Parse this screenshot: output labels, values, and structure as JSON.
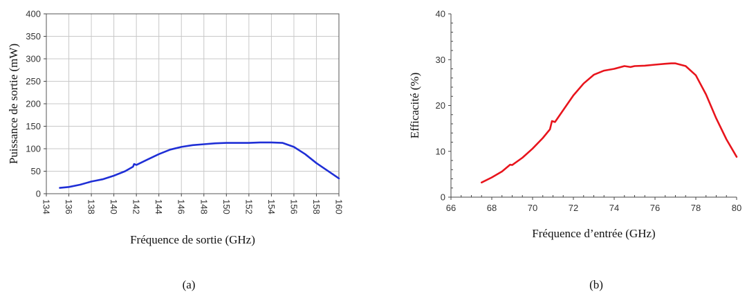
{
  "chart_data": [
    {
      "type": "line",
      "caption": "(a)",
      "xlabel": "Fréquence de sortie (GHz)",
      "ylabel": "Puissance de sortie (mW)",
      "xlim": [
        134,
        160
      ],
      "ylim": [
        0,
        400
      ],
      "xticks": [
        134,
        136,
        138,
        140,
        142,
        144,
        146,
        148,
        150,
        152,
        154,
        156,
        158,
        160
      ],
      "yticks": [
        0,
        50,
        100,
        150,
        200,
        250,
        300,
        350,
        400
      ],
      "grid": true,
      "xtick_rotation": "vertical",
      "color": "#1f2fd6",
      "series": [
        {
          "x": [
            135.2,
            136,
            137,
            138,
            138.4,
            139,
            140,
            141,
            141.7,
            141.8,
            142,
            143,
            144,
            145,
            146,
            147,
            148,
            149,
            150,
            151,
            152,
            153,
            154,
            155,
            156,
            157,
            158,
            159,
            160
          ],
          "y": [
            13,
            15,
            20,
            27,
            29,
            32,
            40,
            50,
            60,
            66,
            64,
            76,
            88,
            98,
            104,
            108,
            110,
            112,
            113,
            113,
            113,
            114,
            114,
            113,
            104,
            88,
            68,
            51,
            34
          ]
        }
      ]
    },
    {
      "type": "line",
      "caption": "(b)",
      "xlabel": "Fréquence d’entrée (GHz)",
      "ylabel": "Efficacité (%)",
      "xlim": [
        66,
        80
      ],
      "ylim": [
        0,
        40
      ],
      "xticks": [
        66,
        68,
        70,
        72,
        74,
        76,
        78,
        80
      ],
      "yticks": [
        0,
        10,
        20,
        30,
        40
      ],
      "grid": false,
      "color": "#e8141c",
      "series": [
        {
          "x": [
            67.5,
            68,
            68.5,
            68.9,
            69,
            69.5,
            70,
            70.5,
            70.85,
            70.95,
            71.1,
            71.5,
            72,
            72.5,
            73,
            73.5,
            74,
            74.5,
            74.8,
            75,
            75.5,
            76,
            76.5,
            76.8,
            77,
            77.5,
            78,
            78.5,
            79,
            79.5,
            80
          ],
          "y": [
            3.2,
            4.3,
            5.6,
            7.1,
            7.0,
            8.6,
            10.6,
            12.9,
            14.8,
            16.6,
            16.4,
            19.0,
            22.2,
            24.8,
            26.7,
            27.6,
            28.0,
            28.6,
            28.4,
            28.6,
            28.7,
            28.9,
            29.1,
            29.2,
            29.2,
            28.6,
            26.6,
            22.4,
            17.2,
            12.6,
            8.8
          ]
        }
      ]
    }
  ]
}
